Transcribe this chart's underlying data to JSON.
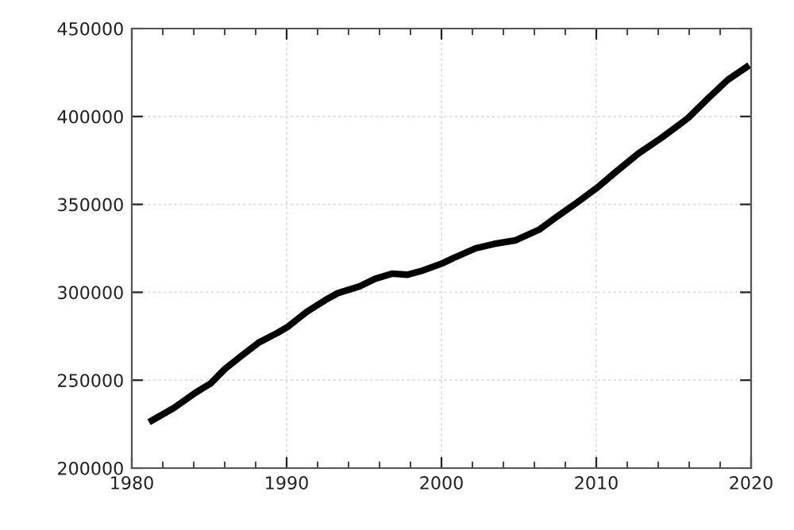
{
  "chart_data": {
    "type": "line",
    "x": [
      1981.3,
      1982.7,
      1984.1,
      1985.1,
      1986.0,
      1987.0,
      1988.2,
      1989.4,
      1990.1,
      1991.3,
      1992.5,
      1993.3,
      1994.7,
      1995.7,
      1996.8,
      1997.8,
      1998.8,
      2000.1,
      2000.8,
      2002.2,
      2003.4,
      2004.8,
      2006.3,
      2007.4,
      2008.7,
      2010.1,
      2011.1,
      2012.7,
      2014.2,
      2015.9,
      2017.3,
      2018.5,
      2019.7
    ],
    "series": [
      {
        "color": "#000000",
        "values": [
          227100,
          234100,
          242800,
          248200,
          256300,
          263300,
          271400,
          276900,
          280500,
          288900,
          295600,
          299500,
          303300,
          307600,
          310600,
          310000,
          312400,
          316600,
          319600,
          325000,
          327500,
          329600,
          335600,
          342600,
          350700,
          359800,
          367300,
          378800,
          387800,
          398900,
          411000,
          420900,
          428100
        ]
      }
    ],
    "xlim": [
      1980,
      2020
    ],
    "xticks": [
      1980,
      1990,
      2000,
      2010,
      2020
    ],
    "ylim": [
      200000,
      450000
    ],
    "yticks": [
      200000,
      250000,
      300000,
      350000,
      400000,
      450000
    ],
    "grid": true,
    "marker": "none",
    "line_style": "solid"
  }
}
